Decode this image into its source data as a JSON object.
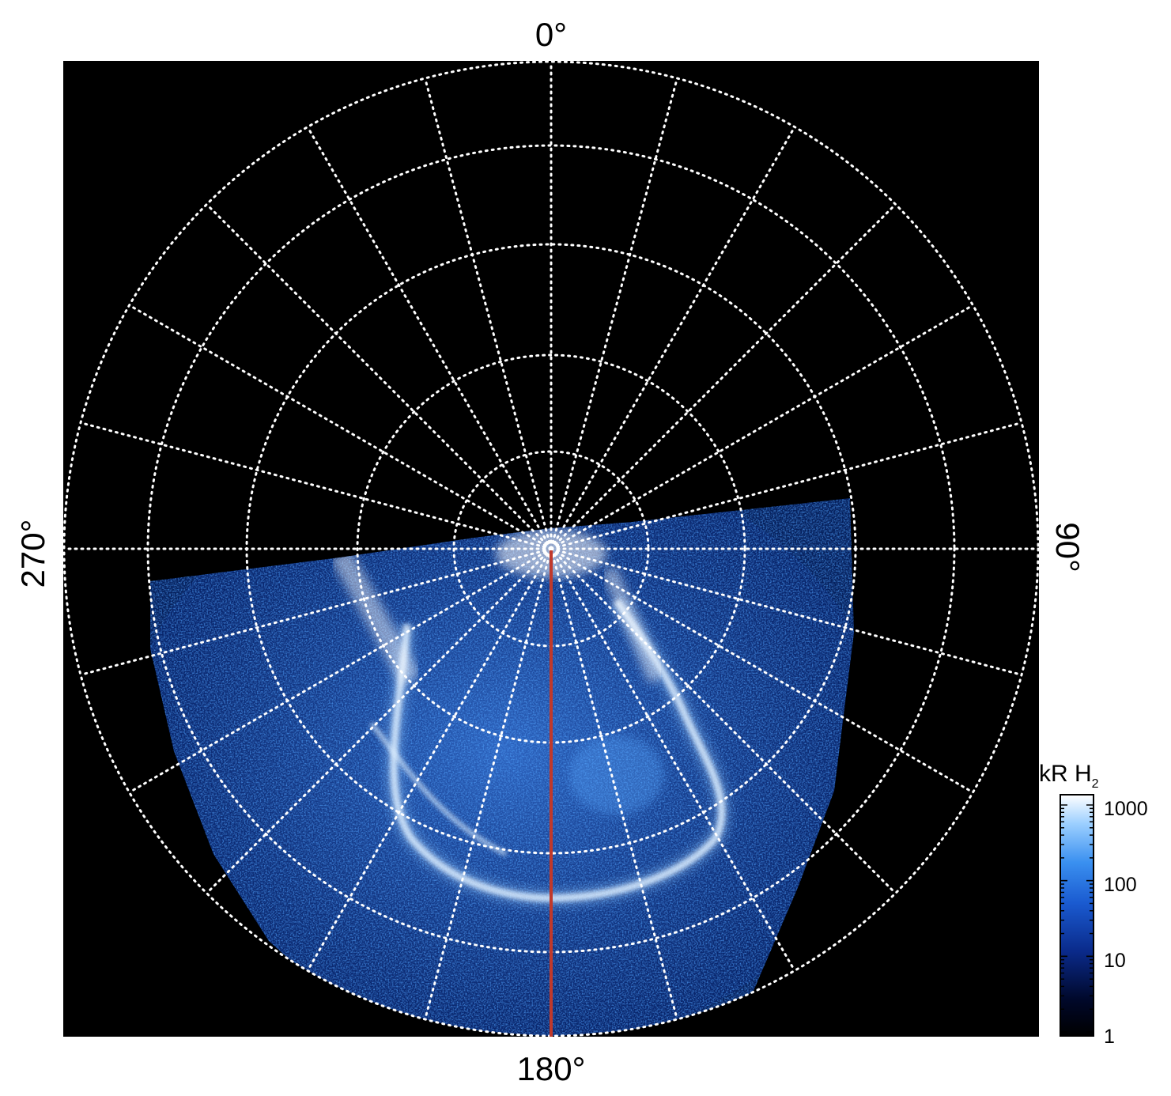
{
  "figure": {
    "labels": {
      "top": "0°",
      "right": "90°",
      "bottom": "180°",
      "left": "270°"
    },
    "colorbar": {
      "title_main": "kR H",
      "title_sub": "2",
      "ticks": [
        "1000",
        "100",
        "10",
        "1"
      ],
      "scale": "log"
    },
    "colors": {
      "background": "#000000",
      "grid": "#ffffff",
      "meridian_line": "#c0392b",
      "colormap": [
        "#000000",
        "#000a3a",
        "#0a2a8a",
        "#1a5ad0",
        "#3a90f0",
        "#8cc8ff",
        "#ffffff"
      ]
    },
    "grid": {
      "style": "dotted",
      "meridian_spacing_deg": 15,
      "parallel_count": 5
    }
  }
}
